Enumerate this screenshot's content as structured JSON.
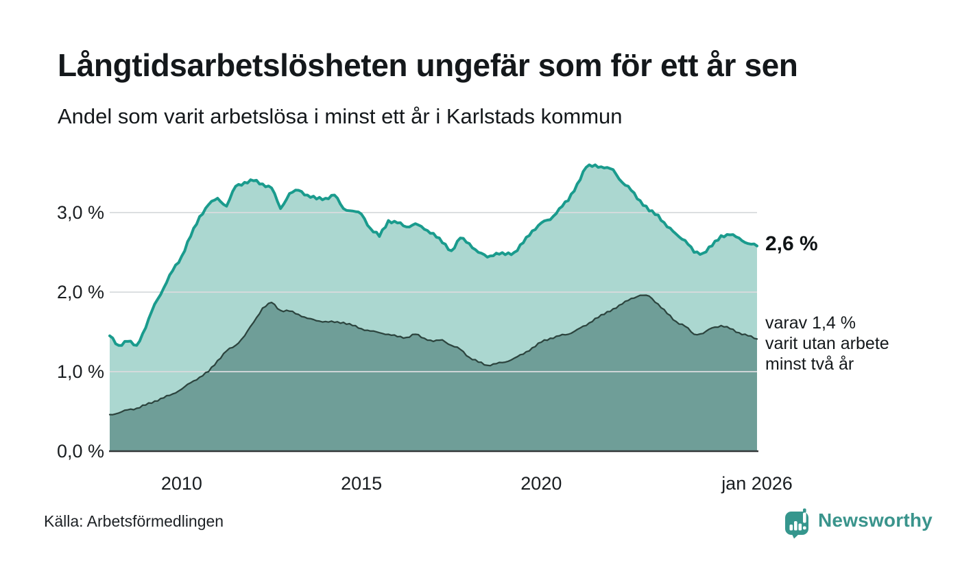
{
  "title": "Långtidsarbetslösheten ungefär som för ett år sen",
  "subtitle": "Andel som varit arbetslösa i minst ett år i Karlstads kommun",
  "annotations": {
    "total_label": "2,6 %",
    "subset_label_lines": [
      "varav 1,4 %",
      "varit utan arbete",
      "minst två år"
    ]
  },
  "source": {
    "text": "Källa: Arbetsförmedlingen"
  },
  "branding": {
    "logo_text": "Newsworthy",
    "logo_icon": "speech-bubble-bar-chart",
    "color": "#3a948c"
  },
  "chart_data": {
    "type": "area",
    "title": "Långtidsarbetslösheten ungefär som för ett år sen",
    "subtitle": "Andel som varit arbetslösa i minst ett år i Karlstads kommun",
    "xlabel": "",
    "ylabel": "",
    "x_unit": "decimal_year",
    "ylim": [
      0,
      3.8
    ],
    "grid": true,
    "legend_position": "none",
    "yticks": [
      {
        "value": 0,
        "label": "0,0 %"
      },
      {
        "value": 1,
        "label": "1,0 %"
      },
      {
        "value": 2,
        "label": "2,0 %"
      },
      {
        "value": 3,
        "label": "3,0 %"
      }
    ],
    "xticks": [
      {
        "value": 2010,
        "label": "2010"
      },
      {
        "value": 2015,
        "label": "2015"
      },
      {
        "value": 2020,
        "label": "2020"
      },
      {
        "value": 2026,
        "label": "jan 2026"
      }
    ],
    "x": [
      2008,
      2008.25,
      2008.5,
      2008.75,
      2009,
      2009.25,
      2009.5,
      2009.75,
      2010,
      2010.25,
      2010.5,
      2010.75,
      2011,
      2011.25,
      2011.5,
      2011.75,
      2012,
      2012.25,
      2012.5,
      2012.75,
      2013,
      2013.25,
      2013.5,
      2013.75,
      2014,
      2014.25,
      2014.5,
      2014.75,
      2015,
      2015.25,
      2015.5,
      2015.75,
      2016,
      2016.25,
      2016.5,
      2016.75,
      2017,
      2017.25,
      2017.5,
      2017.75,
      2018,
      2018.25,
      2018.5,
      2018.75,
      2019,
      2019.25,
      2019.5,
      2019.75,
      2020,
      2020.25,
      2020.5,
      2020.75,
      2021,
      2021.25,
      2021.5,
      2021.75,
      2022,
      2022.25,
      2022.5,
      2022.75,
      2023,
      2023.25,
      2023.5,
      2023.75,
      2024,
      2024.25,
      2024.5,
      2024.75,
      2025,
      2025.25,
      2025.5,
      2025.75,
      2026
    ],
    "series": [
      {
        "name": "Arbetslösa minst ett år",
        "end_label": "2,6 %",
        "end_value": 2.6,
        "line_color": "#1a9b8d",
        "fill_color": "#abd7d0",
        "values": [
          1.45,
          1.33,
          1.38,
          1.33,
          1.55,
          1.85,
          2.05,
          2.27,
          2.45,
          2.7,
          2.95,
          3.1,
          3.18,
          3.08,
          3.33,
          3.38,
          3.4,
          3.36,
          3.31,
          3.05,
          3.24,
          3.28,
          3.22,
          3.17,
          3.18,
          3.22,
          3.05,
          3.02,
          2.98,
          2.8,
          2.7,
          2.9,
          2.87,
          2.82,
          2.86,
          2.79,
          2.74,
          2.62,
          2.52,
          2.68,
          2.61,
          2.5,
          2.44,
          2.49,
          2.47,
          2.5,
          2.62,
          2.77,
          2.87,
          2.91,
          3.05,
          3.15,
          3.36,
          3.57,
          3.6,
          3.56,
          3.54,
          3.38,
          3.28,
          3.15,
          3.02,
          2.97,
          2.82,
          2.73,
          2.65,
          2.5,
          2.49,
          2.58,
          2.71,
          2.72,
          2.68,
          2.61,
          2.58
        ]
      },
      {
        "name": "Varav utan arbete minst två år",
        "end_label": "varav 1,4 % varit utan arbete minst två år",
        "end_value": 1.4,
        "line_color": "#2c443e",
        "fill_color": "#6f9e98",
        "values": [
          0.46,
          0.48,
          0.52,
          0.54,
          0.58,
          0.63,
          0.67,
          0.72,
          0.78,
          0.86,
          0.93,
          1.0,
          1.14,
          1.26,
          1.33,
          1.45,
          1.62,
          1.8,
          1.87,
          1.77,
          1.76,
          1.72,
          1.67,
          1.64,
          1.63,
          1.62,
          1.62,
          1.58,
          1.54,
          1.51,
          1.49,
          1.47,
          1.44,
          1.43,
          1.47,
          1.42,
          1.38,
          1.4,
          1.33,
          1.28,
          1.18,
          1.12,
          1.08,
          1.1,
          1.12,
          1.17,
          1.22,
          1.3,
          1.37,
          1.42,
          1.45,
          1.47,
          1.53,
          1.58,
          1.67,
          1.72,
          1.79,
          1.85,
          1.92,
          1.96,
          1.95,
          1.85,
          1.73,
          1.63,
          1.57,
          1.47,
          1.48,
          1.55,
          1.58,
          1.54,
          1.49,
          1.45,
          1.41
        ]
      }
    ],
    "colors": {
      "gridline": "#d9dcde",
      "baseline": "#34383a",
      "text": "#14181b"
    }
  }
}
